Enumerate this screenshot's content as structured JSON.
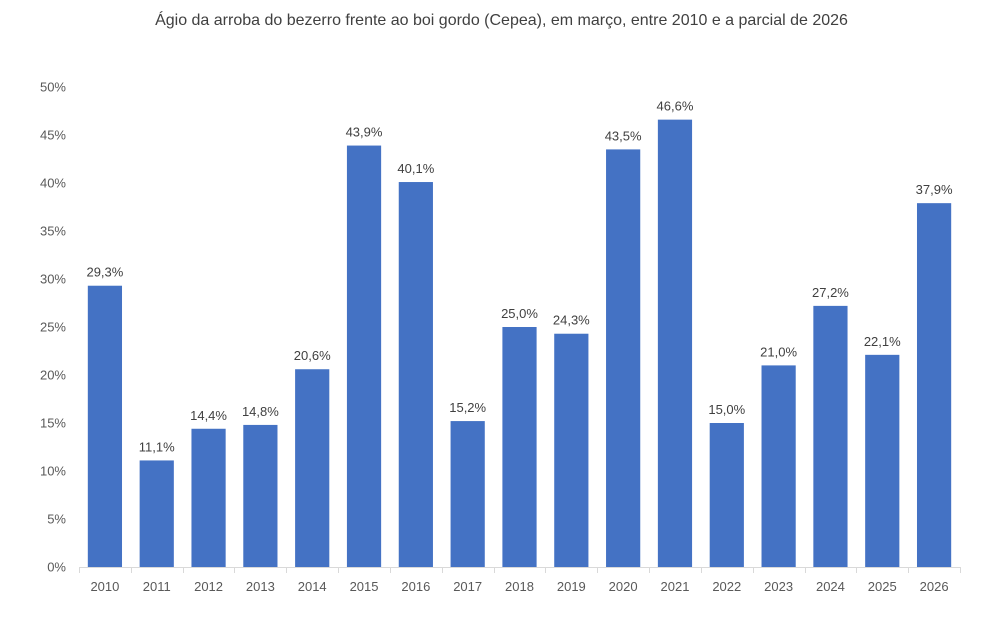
{
  "chart_data": {
    "type": "bar",
    "title": "Ágio da arroba do bezerro frente ao boi gordo (Cepea), em março, entre 2010 e a parcial de 2026",
    "xlabel": "",
    "ylabel": "",
    "ylim": [
      0,
      50
    ],
    "y_ticks": [
      "0%",
      "5%",
      "10%",
      "15%",
      "20%",
      "25%",
      "30%",
      "35%",
      "40%",
      "45%",
      "50%"
    ],
    "categories": [
      "2010",
      "2011",
      "2012",
      "2013",
      "2014",
      "2015",
      "2016",
      "2017",
      "2018",
      "2019",
      "2020",
      "2021",
      "2022",
      "2023",
      "2024",
      "2025",
      "2026"
    ],
    "values": [
      29.3,
      11.1,
      14.4,
      14.8,
      20.6,
      43.9,
      40.1,
      15.2,
      25.0,
      24.3,
      43.5,
      46.6,
      15.0,
      21.0,
      27.2,
      22.1,
      37.9
    ],
    "data_labels": [
      "29,3%",
      "11,1%",
      "14,4%",
      "14,8%",
      "20,6%",
      "43,9%",
      "40,1%",
      "15,2%",
      "25,0%",
      "24,3%",
      "43,5%",
      "46,6%",
      "15,0%",
      "21,0%",
      "27,2%",
      "22,1%",
      "37,9%"
    ],
    "bar_color": "#4472C4",
    "grid": false,
    "legend": "none"
  }
}
